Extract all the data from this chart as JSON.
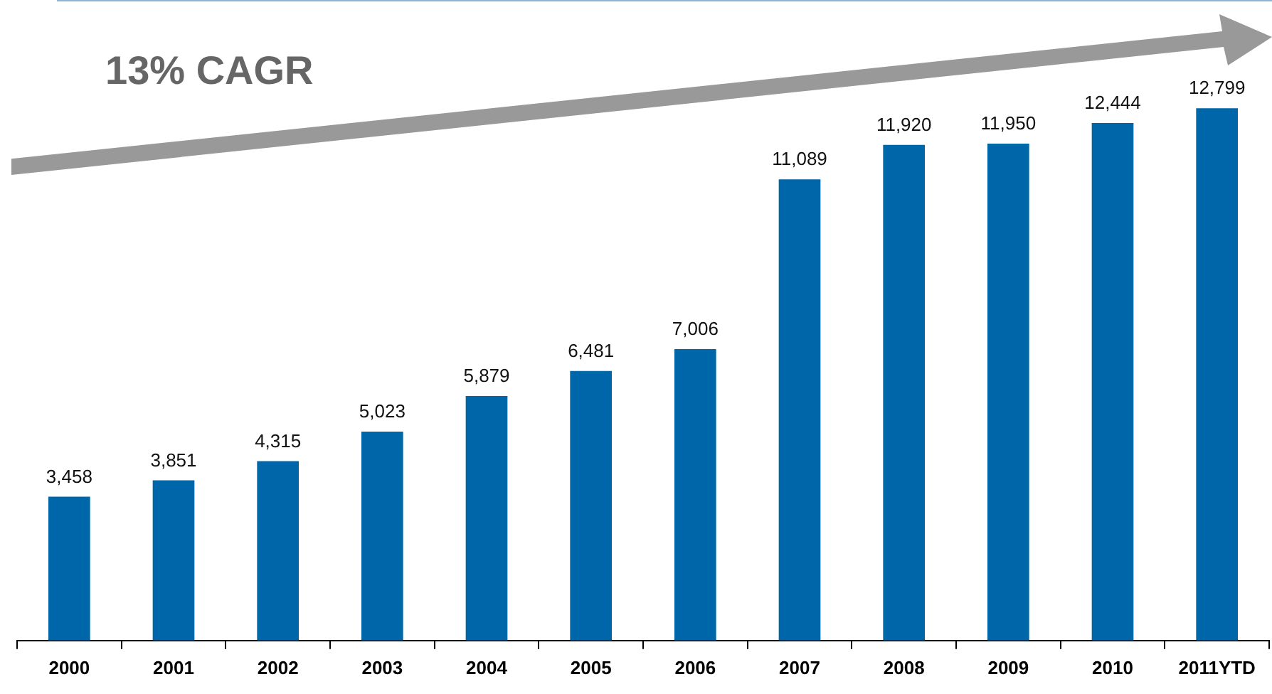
{
  "chart_data": {
    "type": "bar",
    "categories": [
      "2000",
      "2001",
      "2002",
      "2003",
      "2004",
      "2005",
      "2006",
      "2007",
      "2008",
      "2009",
      "2010",
      "2011YTD"
    ],
    "values": [
      3458,
      3851,
      4315,
      5023,
      5879,
      6481,
      7006,
      11089,
      11920,
      11950,
      12444,
      12799
    ],
    "value_labels": [
      "3,458",
      "3,851",
      "4,315",
      "5,023",
      "5,879",
      "6,481",
      "7,006",
      "11,089",
      "11,920",
      "11,950",
      "12,444",
      "12,799"
    ],
    "color": "#0066aa",
    "legend": false,
    "grid": false,
    "tick_labels": "x",
    "annotations": [
      "13% CAGR"
    ]
  }
}
